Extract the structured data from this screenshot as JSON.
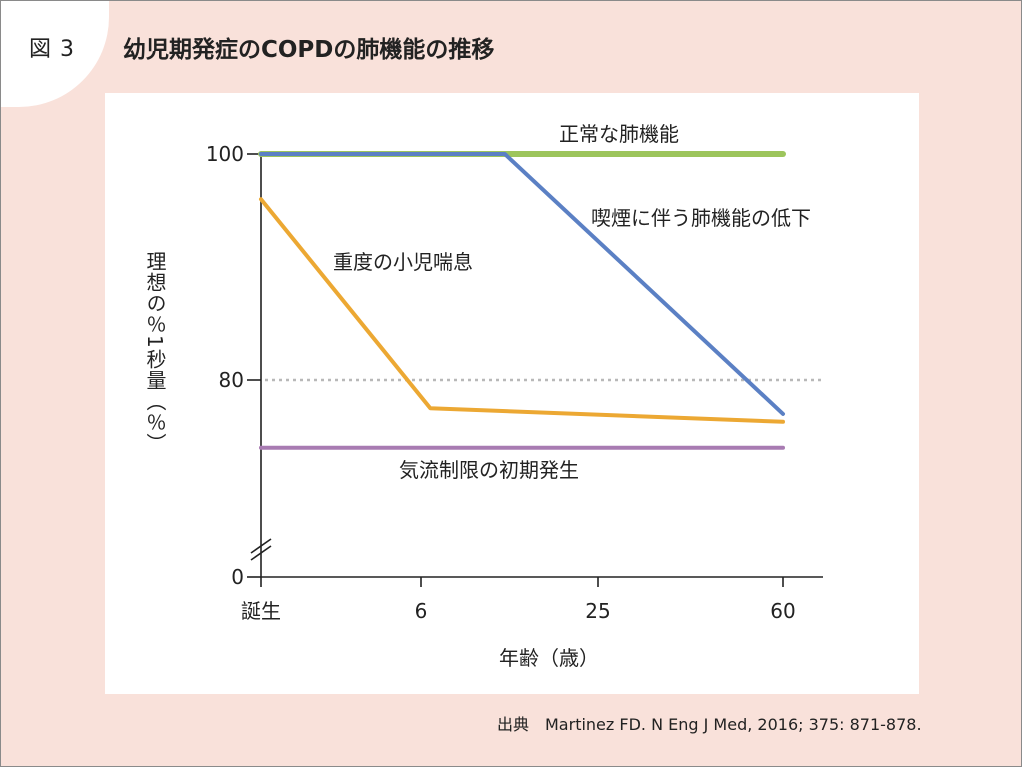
{
  "figure": {
    "number": "図 3",
    "title": "幼児期発症のCOPDの肺機能の推移",
    "source": "出典　Martinez FD. N Eng J Med, 2016; 375: 871-878."
  },
  "chart_data": {
    "type": "line",
    "title": "幼児期発症のCOPDの肺機能の推移",
    "xlabel": "年齢（歳）",
    "ylabel": "理想の％1秒量（％）",
    "x_ticks": [
      "誕生",
      "6",
      "25",
      "60"
    ],
    "y_ticks": [
      0,
      80,
      100
    ],
    "y_axis_break": true,
    "reference_lines": [
      {
        "y": 80,
        "style": "dotted",
        "color": "#b8b8b8"
      }
    ],
    "series": [
      {
        "name": "正常な肺機能",
        "color": "#9dc55c",
        "points": [
          {
            "x": "誕生",
            "y": 100
          },
          {
            "x": "60",
            "y": 100
          }
        ]
      },
      {
        "name": "喫煙に伴う肺機能の低下",
        "color": "#5b80c4",
        "points": [
          {
            "x": "誕生",
            "y": 100
          },
          {
            "x": 15,
            "y": 100
          },
          {
            "x": "60",
            "y": 77
          }
        ]
      },
      {
        "name": "重度の小児喘息",
        "color": "#eca833",
        "points": [
          {
            "x": "誕生",
            "y": 96
          },
          {
            "x": 7,
            "y": 77.5
          },
          {
            "x": "60",
            "y": 76.3
          }
        ]
      },
      {
        "name": "気流制限の初期発生",
        "color": "#a87bb2",
        "points": [
          {
            "x": "誕生",
            "y": 74
          },
          {
            "x": "60",
            "y": 74
          }
        ]
      }
    ]
  }
}
